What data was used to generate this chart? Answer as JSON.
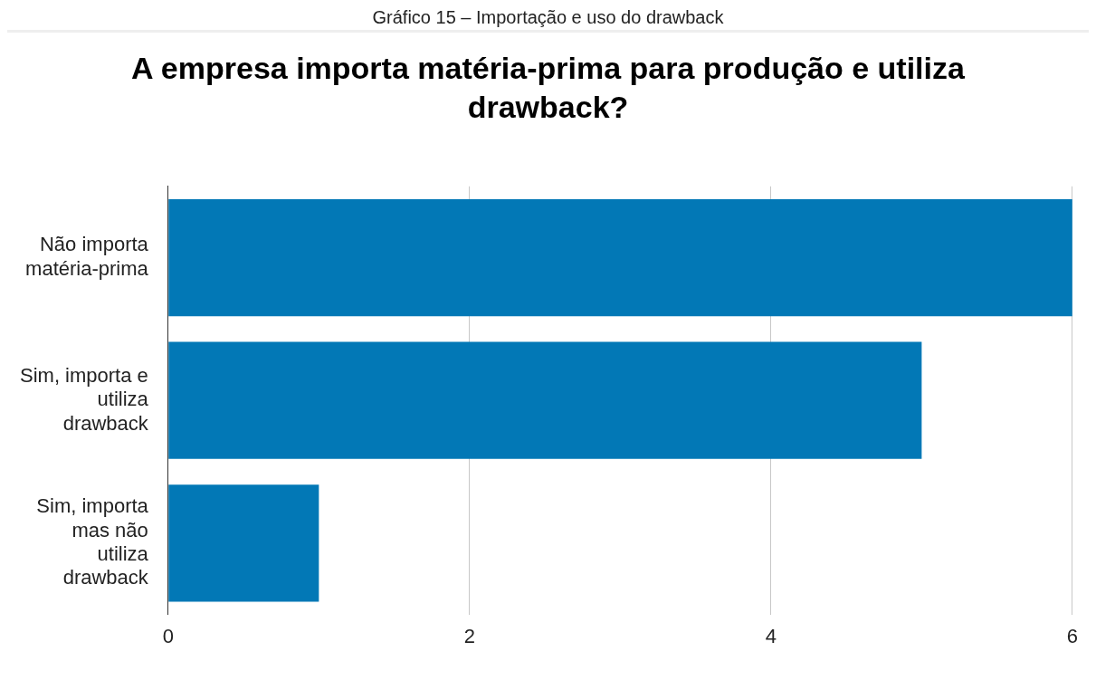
{
  "chart_data": {
    "type": "bar",
    "orientation": "horizontal",
    "title": "A empresa importa matéria-prima para produção e utiliza drawback?",
    "annotations": [
      "Gráfico 15 – Importação e uso do drawback"
    ],
    "categories": [
      "Não importa matéria-prima",
      "Sim, importa e utiliza drawback",
      "Sim, importa mas não utiliza drawback"
    ],
    "values": [
      6,
      5,
      1
    ],
    "color": "#0278b6",
    "xlim": [
      0,
      6
    ],
    "xticks": [
      0,
      2,
      4,
      6
    ],
    "grid": "x",
    "legend": false
  }
}
